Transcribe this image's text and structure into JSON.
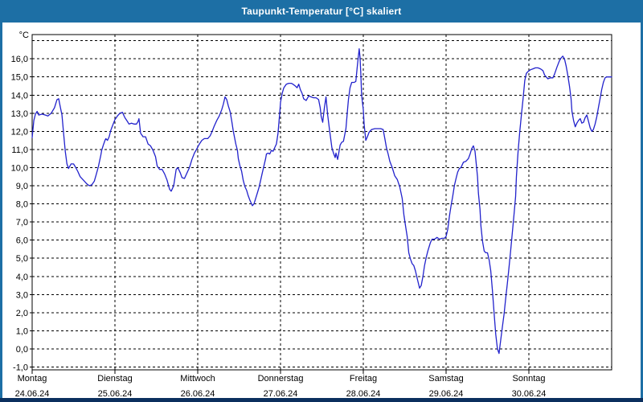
{
  "window": {
    "title": "Taupunkt-Temperatur [°C] skaliert"
  },
  "colors": {
    "frame": "#1d6fa5",
    "bottombar": "#0b2f5e",
    "line": "#2222cc",
    "grid": "#000000",
    "plot_bg": "#ffffff",
    "text": "#000000"
  },
  "chart_data": {
    "type": "line",
    "title": "Taupunkt-Temperatur [°C] skaliert",
    "grid": "dashed",
    "legend": "none",
    "y_axis": {
      "unit": "°C",
      "min": -1,
      "max": 17,
      "tick_step": 1,
      "tick_labels": [
        "-1,0",
        "0,0",
        "1,0",
        "2,0",
        "3,0",
        "4,0",
        "5,0",
        "6,0",
        "7,0",
        "8,0",
        "9,0",
        "10,0",
        "11,0",
        "12,0",
        "13,0",
        "14,0",
        "15,0",
        "16,0"
      ]
    },
    "x_axis": {
      "days": [
        {
          "name": "Montag",
          "date": "24.06.24"
        },
        {
          "name": "Dienstag",
          "date": "25.06.24"
        },
        {
          "name": "Mittwoch",
          "date": "26.06.24"
        },
        {
          "name": "Donnerstag",
          "date": "27.06.24"
        },
        {
          "name": "Freitag",
          "date": "28.06.24"
        },
        {
          "name": "Samstag",
          "date": "29.06.24"
        },
        {
          "name": "Sonntag",
          "date": "30.06.24"
        }
      ]
    },
    "series": [
      {
        "name": "Taupunkt",
        "color": "#2222cc",
        "points": [
          [
            0.0,
            11.65
          ],
          [
            0.02,
            12.6
          ],
          [
            0.04,
            12.95
          ],
          [
            0.06,
            13.1
          ],
          [
            0.08,
            12.9
          ],
          [
            0.12,
            12.95
          ],
          [
            0.16,
            12.9
          ],
          [
            0.19,
            12.85
          ],
          [
            0.23,
            13.0
          ],
          [
            0.27,
            13.3
          ],
          [
            0.3,
            13.75
          ],
          [
            0.32,
            13.8
          ],
          [
            0.34,
            13.35
          ],
          [
            0.36,
            12.9
          ],
          [
            0.38,
            11.9
          ],
          [
            0.4,
            10.9
          ],
          [
            0.42,
            10.2
          ],
          [
            0.44,
            9.95
          ],
          [
            0.47,
            10.2
          ],
          [
            0.5,
            10.2
          ],
          [
            0.52,
            10.05
          ],
          [
            0.55,
            9.8
          ],
          [
            0.58,
            9.5
          ],
          [
            0.62,
            9.3
          ],
          [
            0.66,
            9.1
          ],
          [
            0.69,
            9.0
          ],
          [
            0.72,
            9.05
          ],
          [
            0.75,
            9.25
          ],
          [
            0.77,
            9.55
          ],
          [
            0.8,
            10.05
          ],
          [
            0.83,
            10.7
          ],
          [
            0.84,
            10.95
          ],
          [
            0.86,
            11.25
          ],
          [
            0.88,
            11.5
          ],
          [
            0.89,
            11.6
          ],
          [
            0.91,
            11.5
          ],
          [
            0.93,
            11.7
          ],
          [
            0.95,
            12.05
          ],
          [
            0.97,
            12.3
          ],
          [
            1.0,
            12.65
          ],
          [
            1.03,
            12.85
          ],
          [
            1.06,
            13.0
          ],
          [
            1.09,
            13.05
          ],
          [
            1.12,
            12.75
          ],
          [
            1.15,
            12.55
          ],
          [
            1.17,
            12.4
          ],
          [
            1.2,
            12.45
          ],
          [
            1.23,
            12.4
          ],
          [
            1.26,
            12.4
          ],
          [
            1.28,
            12.55
          ],
          [
            1.29,
            12.7
          ],
          [
            1.31,
            11.9
          ],
          [
            1.34,
            11.7
          ],
          [
            1.37,
            11.7
          ],
          [
            1.4,
            11.3
          ],
          [
            1.43,
            11.2
          ],
          [
            1.46,
            10.95
          ],
          [
            1.49,
            10.6
          ],
          [
            1.51,
            10.1
          ],
          [
            1.54,
            9.9
          ],
          [
            1.57,
            9.9
          ],
          [
            1.6,
            9.65
          ],
          [
            1.63,
            9.3
          ],
          [
            1.66,
            8.8
          ],
          [
            1.68,
            8.7
          ],
          [
            1.71,
            9.0
          ],
          [
            1.74,
            9.9
          ],
          [
            1.76,
            10.0
          ],
          [
            1.79,
            9.7
          ],
          [
            1.81,
            9.45
          ],
          [
            1.84,
            9.4
          ],
          [
            1.87,
            9.7
          ],
          [
            1.9,
            10.0
          ],
          [
            1.93,
            10.45
          ],
          [
            1.96,
            10.8
          ],
          [
            1.99,
            11.05
          ],
          [
            2.02,
            11.3
          ],
          [
            2.05,
            11.5
          ],
          [
            2.08,
            11.6
          ],
          [
            2.12,
            11.6
          ],
          [
            2.15,
            11.75
          ],
          [
            2.17,
            11.95
          ],
          [
            2.2,
            12.3
          ],
          [
            2.23,
            12.6
          ],
          [
            2.26,
            12.85
          ],
          [
            2.29,
            13.2
          ],
          [
            2.31,
            13.5
          ],
          [
            2.33,
            13.9
          ],
          [
            2.35,
            13.75
          ],
          [
            2.37,
            13.4
          ],
          [
            2.39,
            13.1
          ],
          [
            2.41,
            12.6
          ],
          [
            2.43,
            12.0
          ],
          [
            2.46,
            11.3
          ],
          [
            2.48,
            10.95
          ],
          [
            2.49,
            10.5
          ],
          [
            2.51,
            10.1
          ],
          [
            2.53,
            9.8
          ],
          [
            2.55,
            9.3
          ],
          [
            2.57,
            8.95
          ],
          [
            2.59,
            8.75
          ],
          [
            2.61,
            8.45
          ],
          [
            2.63,
            8.2
          ],
          [
            2.66,
            7.9
          ],
          [
            2.68,
            8.0
          ],
          [
            2.7,
            8.3
          ],
          [
            2.72,
            8.6
          ],
          [
            2.74,
            8.9
          ],
          [
            2.76,
            9.3
          ],
          [
            2.78,
            9.7
          ],
          [
            2.8,
            10.1
          ],
          [
            2.82,
            10.5
          ],
          [
            2.83,
            10.75
          ],
          [
            2.85,
            10.8
          ],
          [
            2.87,
            10.75
          ],
          [
            2.89,
            10.95
          ],
          [
            2.91,
            10.9
          ],
          [
            2.93,
            11.1
          ],
          [
            2.95,
            11.3
          ],
          [
            2.97,
            11.9
          ],
          [
            2.99,
            13.0
          ],
          [
            3.0,
            13.6
          ],
          [
            3.02,
            14.1
          ],
          [
            3.04,
            14.4
          ],
          [
            3.07,
            14.6
          ],
          [
            3.1,
            14.65
          ],
          [
            3.13,
            14.65
          ],
          [
            3.15,
            14.6
          ],
          [
            3.18,
            14.5
          ],
          [
            3.2,
            14.4
          ],
          [
            3.22,
            14.6
          ],
          [
            3.24,
            14.3
          ],
          [
            3.26,
            14.1
          ],
          [
            3.28,
            13.8
          ],
          [
            3.31,
            13.7
          ],
          [
            3.34,
            13.95
          ],
          [
            3.37,
            13.9
          ],
          [
            3.4,
            13.85
          ],
          [
            3.43,
            13.85
          ],
          [
            3.46,
            13.75
          ],
          [
            3.48,
            13.3
          ],
          [
            3.49,
            12.85
          ],
          [
            3.51,
            12.5
          ],
          [
            3.53,
            13.3
          ],
          [
            3.55,
            13.9
          ],
          [
            3.57,
            12.9
          ],
          [
            3.59,
            12.15
          ],
          [
            3.62,
            11.1
          ],
          [
            3.64,
            10.8
          ],
          [
            3.66,
            10.55
          ],
          [
            3.67,
            10.8
          ],
          [
            3.69,
            10.45
          ],
          [
            3.72,
            11.25
          ],
          [
            3.74,
            11.4
          ],
          [
            3.76,
            11.45
          ],
          [
            3.79,
            12.15
          ],
          [
            3.81,
            13.2
          ],
          [
            3.82,
            13.75
          ],
          [
            3.84,
            14.4
          ],
          [
            3.86,
            14.7
          ],
          [
            3.89,
            14.7
          ],
          [
            3.91,
            14.75
          ],
          [
            3.93,
            15.7
          ],
          [
            3.95,
            16.55
          ],
          [
            3.96,
            16.1
          ],
          [
            3.97,
            15.2
          ],
          [
            3.98,
            14.0
          ],
          [
            4.0,
            13.2
          ],
          [
            4.01,
            12.4
          ],
          [
            4.03,
            11.5
          ],
          [
            4.05,
            11.7
          ],
          [
            4.07,
            11.95
          ],
          [
            4.1,
            12.1
          ],
          [
            4.14,
            12.15
          ],
          [
            4.17,
            12.15
          ],
          [
            4.21,
            12.15
          ],
          [
            4.24,
            12.1
          ],
          [
            4.26,
            11.6
          ],
          [
            4.28,
            11.1
          ],
          [
            4.3,
            10.75
          ],
          [
            4.32,
            10.35
          ],
          [
            4.35,
            10.0
          ],
          [
            4.38,
            9.55
          ],
          [
            4.41,
            9.35
          ],
          [
            4.44,
            8.95
          ],
          [
            4.47,
            8.3
          ],
          [
            4.49,
            7.4
          ],
          [
            4.51,
            6.8
          ],
          [
            4.53,
            6.2
          ],
          [
            4.55,
            5.3
          ],
          [
            4.57,
            4.95
          ],
          [
            4.59,
            4.7
          ],
          [
            4.61,
            4.6
          ],
          [
            4.63,
            4.3
          ],
          [
            4.65,
            3.9
          ],
          [
            4.68,
            3.35
          ],
          [
            4.7,
            3.5
          ],
          [
            4.72,
            4.0
          ],
          [
            4.74,
            4.6
          ],
          [
            4.76,
            5.05
          ],
          [
            4.78,
            5.4
          ],
          [
            4.81,
            5.85
          ],
          [
            4.83,
            6.05
          ],
          [
            4.86,
            6.05
          ],
          [
            4.89,
            6.15
          ],
          [
            4.92,
            6.05
          ],
          [
            4.95,
            6.1
          ],
          [
            4.98,
            6.1
          ],
          [
            5.0,
            6.2
          ],
          [
            5.02,
            6.6
          ],
          [
            5.04,
            7.3
          ],
          [
            5.06,
            7.9
          ],
          [
            5.08,
            8.4
          ],
          [
            5.1,
            9.0
          ],
          [
            5.12,
            9.4
          ],
          [
            5.14,
            9.75
          ],
          [
            5.16,
            9.95
          ],
          [
            5.18,
            10.0
          ],
          [
            5.21,
            10.3
          ],
          [
            5.24,
            10.35
          ],
          [
            5.27,
            10.5
          ],
          [
            5.29,
            10.75
          ],
          [
            5.31,
            11.05
          ],
          [
            5.33,
            11.2
          ],
          [
            5.35,
            10.9
          ],
          [
            5.36,
            10.4
          ],
          [
            5.38,
            9.5
          ],
          [
            5.39,
            8.6
          ],
          [
            5.41,
            7.7
          ],
          [
            5.42,
            6.8
          ],
          [
            5.44,
            5.95
          ],
          [
            5.46,
            5.4
          ],
          [
            5.48,
            5.3
          ],
          [
            5.5,
            5.3
          ],
          [
            5.52,
            4.9
          ],
          [
            5.54,
            4.3
          ],
          [
            5.56,
            3.2
          ],
          [
            5.58,
            2.0
          ],
          [
            5.6,
            0.8
          ],
          [
            5.62,
            0.0
          ],
          [
            5.64,
            -0.25
          ],
          [
            5.66,
            0.5
          ],
          [
            5.68,
            1.2
          ],
          [
            5.7,
            1.9
          ],
          [
            5.72,
            2.8
          ],
          [
            5.74,
            3.6
          ],
          [
            5.76,
            4.5
          ],
          [
            5.78,
            5.4
          ],
          [
            5.8,
            6.4
          ],
          [
            5.82,
            7.4
          ],
          [
            5.84,
            8.4
          ],
          [
            5.85,
            9.5
          ],
          [
            5.87,
            10.9
          ],
          [
            5.89,
            12.0
          ],
          [
            5.91,
            12.9
          ],
          [
            5.93,
            13.8
          ],
          [
            5.95,
            14.8
          ],
          [
            5.97,
            15.2
          ],
          [
            5.99,
            15.3
          ],
          [
            6.02,
            15.4
          ],
          [
            6.05,
            15.45
          ],
          [
            6.08,
            15.5
          ],
          [
            6.11,
            15.5
          ],
          [
            6.14,
            15.45
          ],
          [
            6.17,
            15.35
          ],
          [
            6.19,
            15.1
          ],
          [
            6.21,
            15.0
          ],
          [
            6.23,
            14.9
          ],
          [
            6.26,
            14.95
          ],
          [
            6.29,
            14.95
          ],
          [
            6.31,
            15.15
          ],
          [
            6.34,
            15.55
          ],
          [
            6.37,
            15.9
          ],
          [
            6.39,
            16.05
          ],
          [
            6.41,
            16.15
          ],
          [
            6.43,
            16.0
          ],
          [
            6.45,
            15.6
          ],
          [
            6.47,
            15.1
          ],
          [
            6.49,
            14.5
          ],
          [
            6.51,
            13.8
          ],
          [
            6.52,
            13.1
          ],
          [
            6.54,
            12.6
          ],
          [
            6.56,
            12.25
          ],
          [
            6.58,
            12.45
          ],
          [
            6.6,
            12.6
          ],
          [
            6.62,
            12.7
          ],
          [
            6.64,
            12.45
          ],
          [
            6.66,
            12.5
          ],
          [
            6.68,
            12.75
          ],
          [
            6.7,
            12.9
          ],
          [
            6.72,
            12.55
          ],
          [
            6.74,
            12.2
          ],
          [
            6.76,
            12.0
          ],
          [
            6.78,
            12.1
          ],
          [
            6.8,
            12.4
          ],
          [
            6.82,
            12.8
          ],
          [
            6.84,
            13.3
          ],
          [
            6.86,
            13.8
          ],
          [
            6.88,
            14.3
          ],
          [
            6.9,
            14.7
          ],
          [
            6.92,
            14.95
          ],
          [
            6.94,
            15.0
          ],
          [
            6.97,
            15.0
          ],
          [
            7.0,
            15.0
          ]
        ]
      }
    ]
  }
}
